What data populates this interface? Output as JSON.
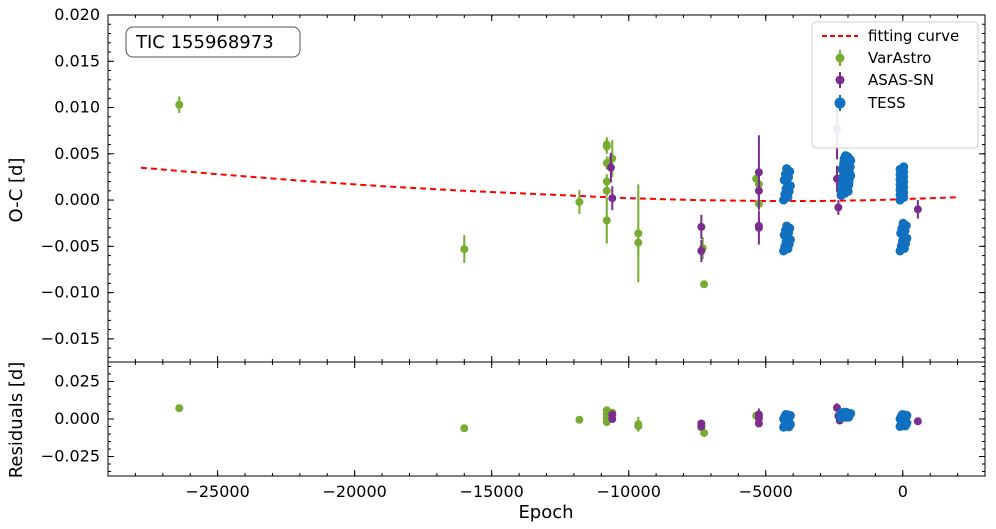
{
  "chart_data": {
    "type": "scatter",
    "annotation": "TIC 155968973",
    "xlabel": "Epoch",
    "xlim": [
      -29000,
      3000
    ],
    "x_ticks": [
      -25000,
      -20000,
      -15000,
      -10000,
      -5000,
      0
    ],
    "x_tick_labels": [
      "−25000",
      "−20000",
      "−15000",
      "−10000",
      "−5000",
      "0"
    ],
    "legend": {
      "position": "top-right",
      "entries": [
        "fitting curve",
        "VarAstro",
        "ASAS-SN",
        "TESS"
      ]
    },
    "colors": {
      "VarAstro": "#77ab32",
      "ASAS-SN": "#7b2d8e",
      "TESS": "#1170bf",
      "fit": "#ff0000"
    },
    "panels": [
      {
        "id": "oc",
        "ylabel": "O-C [d]",
        "ylim": [
          -0.0175,
          0.02
        ],
        "y_ticks": [
          0.02,
          0.015,
          0.01,
          0.005,
          0.0,
          -0.005,
          -0.01,
          -0.015
        ],
        "y_tick_labels": [
          "0.020",
          "0.015",
          "0.010",
          "0.005",
          "0.000",
          "−0.005",
          "−0.010",
          "−0.015"
        ],
        "fitting_curve": {
          "name": "fitting curve",
          "points": [
            [
              -27800,
              0.0035
            ],
            [
              -25000,
              0.0028
            ],
            [
              -22000,
              0.0021
            ],
            [
              -19000,
              0.0015
            ],
            [
              -16000,
              0.001
            ],
            [
              -13000,
              0.0006
            ],
            [
              -10000,
              0.0002
            ],
            [
              -7500,
              0.0
            ],
            [
              -5000,
              -0.0001
            ],
            [
              -3000,
              -0.0001
            ],
            [
              -1000,
              0.0
            ],
            [
              0,
              0.0001
            ],
            [
              2000,
              0.0003
            ]
          ]
        },
        "series": [
          {
            "name": "VarAstro",
            "points": [
              [
                -26400,
                0.0103,
                0.0009
              ],
              [
                -16000,
                -0.0053,
                0.0015
              ],
              [
                -11800,
                -0.0002,
                0.0013
              ],
              [
                -10800,
                0.006,
                0.0008
              ],
              [
                -10800,
                0.0058,
                0.0008
              ],
              [
                -10800,
                0.004,
                0.0007
              ],
              [
                -10800,
                0.002,
                0.0008
              ],
              [
                -10800,
                0.001,
                0.0006
              ],
              [
                -10800,
                -0.0022,
                0.0025
              ],
              [
                -10600,
                0.0045,
                0.002
              ],
              [
                -9650,
                -0.0036,
                0.0053
              ],
              [
                -9650,
                -0.0046,
                0.0014
              ],
              [
                -7300,
                -0.0052,
                0.0012
              ],
              [
                -7250,
                -0.0091,
                0.0004
              ],
              [
                -5350,
                0.0023,
                0.0005
              ],
              [
                -5250,
                0.0017,
                0.0006
              ],
              [
                -5250,
                -0.0004,
                0.0008
              ]
            ]
          },
          {
            "name": "ASAS-SN",
            "points": [
              [
                -10650,
                0.0035,
                0.0016
              ],
              [
                -10600,
                0.0002,
                0.0013
              ],
              [
                -7350,
                -0.0029,
                0.0013
              ],
              [
                -7350,
                -0.0055,
                0.0012
              ],
              [
                -5250,
                0.003,
                0.004
              ],
              [
                -5250,
                0.001,
                0.0015
              ],
              [
                -5250,
                -0.0028,
                0.0008
              ],
              [
                -5250,
                -0.003,
                0.0018
              ],
              [
                -2400,
                0.0077,
                0.0033
              ],
              [
                -2400,
                0.0023,
                0.0014
              ],
              [
                -2350,
                -0.0008,
                0.0008
              ],
              [
                -2250,
                0.0008,
                0.0006
              ],
              [
                550,
                -0.001,
                0.001
              ]
            ]
          },
          {
            "name": "TESS",
            "clusters": [
              {
                "x_min": -4350,
                "x_max": -4100,
                "upper_min": 0.0,
                "upper_max": 0.0034,
                "lower_min": -0.0055,
                "lower_max": -0.0028,
                "n_upper": 12,
                "n_lower": 12
              },
              {
                "x_min": -2250,
                "x_max": -1900,
                "upper_min": 0.0005,
                "upper_max": 0.0047,
                "lower_min": 0.0008,
                "lower_max": 0.0048,
                "n_upper": 20,
                "n_lower": 12
              },
              {
                "x_min": -100,
                "x_max": 150,
                "upper_min": 0.0,
                "upper_max": 0.0036,
                "lower_min": -0.0055,
                "lower_max": -0.0025,
                "n_upper": 14,
                "n_lower": 12
              }
            ]
          }
        ]
      },
      {
        "id": "residuals",
        "ylabel": "Residuals [d]",
        "ylim": [
          -0.038,
          0.038
        ],
        "y_ticks": [
          0.025,
          0.0,
          -0.025
        ],
        "y_tick_labels": [
          "0.025",
          "0.000",
          "−0.025"
        ],
        "series": [
          {
            "name": "VarAstro",
            "points": [
              [
                -26400,
                0.0072,
                0.001
              ],
              [
                -16000,
                -0.0062,
                0.0015
              ],
              [
                -11800,
                -0.0005,
                0.0013
              ],
              [
                -10800,
                0.0058,
                0.001
              ],
              [
                -10800,
                0.0035,
                0.001
              ],
              [
                -10800,
                0.0005,
                0.001
              ],
              [
                -10800,
                -0.002,
                0.0015
              ],
              [
                -10600,
                0.0042,
                0.002
              ],
              [
                -9650,
                -0.0035,
                0.005
              ],
              [
                -9650,
                -0.0048,
                0.0015
              ],
              [
                -7350,
                -0.0055,
                0.0012
              ],
              [
                -7250,
                -0.0093,
                0.0006
              ],
              [
                -5350,
                0.0022,
                0.0006
              ],
              [
                -5250,
                0.0015,
                0.0006
              ]
            ]
          },
          {
            "name": "ASAS-SN",
            "points": [
              [
                -10600,
                0.003,
                0.0016
              ],
              [
                -10600,
                0.0,
                0.0013
              ],
              [
                -7350,
                -0.003,
                0.0013
              ],
              [
                -7350,
                -0.005,
                0.0012
              ],
              [
                -5250,
                0.003,
                0.004
              ],
              [
                -5250,
                0.0005,
                0.0015
              ],
              [
                -5250,
                -0.003,
                0.0008
              ],
              [
                -2400,
                0.0075,
                0.003
              ],
              [
                -2350,
                0.002,
                0.0014
              ],
              [
                -2300,
                -0.001,
                0.0008
              ],
              [
                550,
                -0.0015,
                0.001
              ]
            ]
          },
          {
            "name": "TESS",
            "clusters": [
              {
                "x_min": -4350,
                "x_max": -4100,
                "upper_min": 0.0,
                "upper_max": 0.003,
                "lower_min": -0.0055,
                "lower_max": -0.003,
                "n_upper": 10,
                "n_lower": 10
              },
              {
                "x_min": -2250,
                "x_max": -1900,
                "upper_min": 0.0008,
                "upper_max": 0.0045,
                "lower_min": 0.0008,
                "lower_max": 0.0045,
                "n_upper": 14,
                "n_lower": 10
              },
              {
                "x_min": -100,
                "x_max": 150,
                "upper_min": 0.0,
                "upper_max": 0.003,
                "lower_min": -0.005,
                "lower_max": -0.002,
                "n_upper": 10,
                "n_lower": 10
              }
            ]
          }
        ]
      }
    ]
  }
}
